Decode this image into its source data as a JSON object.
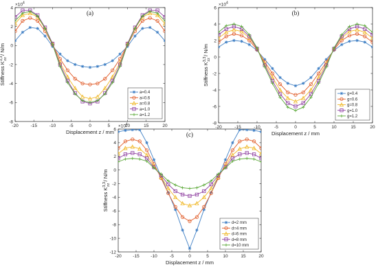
{
  "chart_data": [
    {
      "type": "line",
      "panel_label": "(a)",
      "xlabel": "Displacement z / mm",
      "ylabel": "Stiffness K",
      "ylabel_sup": "3,3",
      "ylabel_sub": "zz",
      "ylabel_unit": " / N/m",
      "y_multiplier": "×10",
      "y_multiplier_exp": "4",
      "xlim": [
        -20,
        20
      ],
      "ylim": [
        -8,
        4
      ],
      "xticks": [
        -20,
        -15,
        -10,
        -5,
        0,
        5,
        10,
        15,
        20
      ],
      "yticks": [
        -8,
        -6,
        -4,
        -2,
        0,
        2,
        4
      ],
      "legend_position": "bottom-right",
      "x": [
        -20,
        -18,
        -16,
        -14,
        -12,
        -10,
        -8,
        -6,
        -4,
        -2,
        0,
        2,
        4,
        6,
        8,
        10,
        12,
        14,
        16,
        18,
        20
      ],
      "series": [
        {
          "name": "a=0.4",
          "color": "#3f7fc4",
          "marker": "asterisk",
          "values": [
            0.5,
            1.4,
            1.9,
            1.8,
            1.0,
            -0.1,
            -0.9,
            -1.6,
            -2.0,
            -2.2,
            -2.3,
            -2.2,
            -2.0,
            -1.6,
            -0.9,
            -0.1,
            1.0,
            1.8,
            1.9,
            1.4,
            0.5
          ]
        },
        {
          "name": "a=0.6",
          "color": "#e05a26",
          "marker": "circle",
          "values": [
            1.5,
            2.6,
            2.9,
            2.6,
            1.5,
            0.1,
            -1.4,
            -2.6,
            -3.5,
            -4.0,
            -4.1,
            -4.0,
            -3.5,
            -2.6,
            -1.4,
            0.1,
            1.5,
            2.6,
            2.9,
            2.6,
            1.5
          ]
        },
        {
          "name": "a=0.8",
          "color": "#f0b828",
          "marker": "triangle",
          "values": [
            2.3,
            3.2,
            3.4,
            3.0,
            1.8,
            0.2,
            -1.8,
            -3.3,
            -4.5,
            -5.4,
            -5.6,
            -5.4,
            -4.5,
            -3.3,
            -1.8,
            0.2,
            1.8,
            3.0,
            3.4,
            3.2,
            2.3
          ]
        },
        {
          "name": "a=1.0",
          "color": "#8e3fa0",
          "marker": "square",
          "values": [
            3.0,
            3.7,
            3.7,
            3.2,
            1.9,
            0.2,
            -2.0,
            -3.7,
            -5.0,
            -5.9,
            -6.1,
            -5.9,
            -5.0,
            -3.7,
            -2.0,
            0.2,
            1.9,
            3.2,
            3.7,
            3.7,
            3.0
          ]
        },
        {
          "name": "a=1.2",
          "color": "#5aa836",
          "marker": "plus",
          "values": [
            2.6,
            3.4,
            3.6,
            3.1,
            1.8,
            0.1,
            -2.2,
            -3.9,
            -5.1,
            -5.8,
            -6.0,
            -5.8,
            -5.1,
            -3.9,
            -2.2,
            0.1,
            1.8,
            3.1,
            3.6,
            3.4,
            2.6
          ]
        }
      ]
    },
    {
      "type": "line",
      "panel_label": "(b)",
      "xlabel": "Displacement z / mm",
      "ylabel": "Stiffness K",
      "ylabel_sup": "3,3",
      "ylabel_sub": "zz",
      "ylabel_unit": " / N/m",
      "y_multiplier": "×10",
      "y_multiplier_exp": "4",
      "xlim": [
        -20,
        20
      ],
      "ylim": [
        -8,
        6
      ],
      "xticks": [
        -20,
        -15,
        -10,
        -5,
        0,
        5,
        10,
        15,
        20
      ],
      "yticks": [
        -8,
        -6,
        -4,
        -2,
        0,
        2,
        4,
        6
      ],
      "legend_position": "bottom-right",
      "x": [
        -20,
        -18,
        -16,
        -14,
        -12,
        -10,
        -8,
        -6,
        -4,
        -2,
        0,
        2,
        4,
        6,
        8,
        10,
        12,
        14,
        16,
        18,
        20
      ],
      "series": [
        {
          "name": "g=0.4",
          "color": "#3f7fc4",
          "marker": "asterisk",
          "values": [
            1.2,
            1.8,
            2.0,
            1.9,
            1.5,
            0.8,
            -0.3,
            -1.4,
            -2.5,
            -3.2,
            -3.5,
            -3.2,
            -2.5,
            -1.4,
            -0.3,
            0.8,
            1.5,
            1.9,
            2.0,
            1.8,
            1.2
          ]
        },
        {
          "name": "g=0.6",
          "color": "#e05a26",
          "marker": "circle",
          "values": [
            1.8,
            2.5,
            2.8,
            2.6,
            2.0,
            0.9,
            -0.6,
            -2.0,
            -3.3,
            -4.3,
            -4.6,
            -4.3,
            -3.3,
            -2.0,
            -0.6,
            0.9,
            2.0,
            2.6,
            2.8,
            2.5,
            1.8
          ]
        },
        {
          "name": "g=0.8",
          "color": "#f0b828",
          "marker": "triangle",
          "values": [
            2.3,
            3.0,
            3.3,
            3.1,
            2.3,
            1.0,
            -0.8,
            -2.5,
            -4.0,
            -5.0,
            -5.4,
            -5.0,
            -4.0,
            -2.5,
            -0.8,
            1.0,
            2.3,
            3.1,
            3.3,
            3.0,
            2.3
          ]
        },
        {
          "name": "g=1.0",
          "color": "#8e3fa0",
          "marker": "square",
          "values": [
            2.7,
            3.4,
            3.7,
            3.4,
            2.5,
            1.0,
            -1.0,
            -2.9,
            -4.5,
            -5.6,
            -6.0,
            -5.6,
            -4.5,
            -2.9,
            -1.0,
            1.0,
            2.5,
            3.4,
            3.7,
            3.4,
            2.7
          ]
        },
        {
          "name": "g=1.2",
          "color": "#5aa836",
          "marker": "plus",
          "values": [
            3.0,
            3.8,
            4.0,
            3.7,
            2.7,
            1.1,
            -1.2,
            -3.2,
            -4.9,
            -6.1,
            -6.5,
            -6.1,
            -4.9,
            -3.2,
            -1.2,
            1.1,
            2.7,
            3.7,
            4.0,
            3.8,
            3.0
          ]
        }
      ]
    },
    {
      "type": "line",
      "panel_label": "(c)",
      "xlabel": "Displacement z / mm",
      "ylabel": "Stiffness K",
      "ylabel_sup": "3,3",
      "ylabel_sub": "zz",
      "ylabel_unit": " / N/m",
      "y_multiplier": "×10",
      "y_multiplier_exp": "4",
      "xlim": [
        -20,
        20
      ],
      "ylim": [
        -12,
        6
      ],
      "xticks": [
        -20,
        -15,
        -10,
        -5,
        0,
        5,
        10,
        15,
        20
      ],
      "yticks": [
        -12,
        -10,
        -8,
        -6,
        -4,
        -2,
        0,
        2,
        4,
        6
      ],
      "legend_position": "bottom-right",
      "x": [
        -20,
        -18,
        -16,
        -14,
        -12,
        -10,
        -8,
        -6,
        -4,
        -2,
        0,
        2,
        4,
        6,
        8,
        10,
        12,
        14,
        16,
        18,
        20
      ],
      "series": [
        {
          "name": "d=2 mm",
          "color": "#3f7fc4",
          "marker": "asterisk",
          "values": [
            5.6,
            5.8,
            5.9,
            5.9,
            4.0,
            1.5,
            -1.0,
            -3.3,
            -5.8,
            -8.8,
            -11.5,
            -8.8,
            -5.8,
            -3.3,
            -1.0,
            1.5,
            4.0,
            5.9,
            5.9,
            5.8,
            5.6
          ]
        },
        {
          "name": "d=4 mm",
          "color": "#e05a26",
          "marker": "circle",
          "values": [
            3.2,
            4.2,
            4.5,
            4.2,
            2.9,
            0.9,
            -1.2,
            -3.4,
            -5.4,
            -6.9,
            -7.5,
            -6.9,
            -5.4,
            -3.4,
            -1.2,
            0.9,
            2.9,
            4.2,
            4.5,
            4.2,
            3.2
          ]
        },
        {
          "name": "d=6 mm",
          "color": "#f0b828",
          "marker": "triangle",
          "values": [
            2.4,
            3.2,
            3.4,
            3.1,
            2.2,
            0.6,
            -1.0,
            -2.7,
            -4.0,
            -4.9,
            -5.2,
            -4.9,
            -4.0,
            -2.7,
            -1.0,
            0.6,
            2.2,
            3.1,
            3.4,
            3.2,
            2.4
          ]
        },
        {
          "name": "d=8 mm",
          "color": "#8e3fa0",
          "marker": "square",
          "values": [
            1.7,
            2.3,
            2.5,
            2.3,
            1.7,
            0.4,
            -0.8,
            -2.1,
            -3.1,
            -3.6,
            -3.8,
            -3.6,
            -3.1,
            -2.1,
            -0.8,
            0.4,
            1.7,
            2.3,
            2.5,
            2.3,
            1.7
          ]
        },
        {
          "name": "d=10 mm",
          "color": "#5aa836",
          "marker": "plus",
          "values": [
            1.2,
            1.6,
            1.7,
            1.6,
            1.3,
            0.3,
            -0.6,
            -1.6,
            -2.2,
            -2.6,
            -2.7,
            -2.6,
            -2.2,
            -1.6,
            -0.6,
            0.3,
            1.3,
            1.6,
            1.7,
            1.6,
            1.2
          ]
        }
      ]
    }
  ]
}
